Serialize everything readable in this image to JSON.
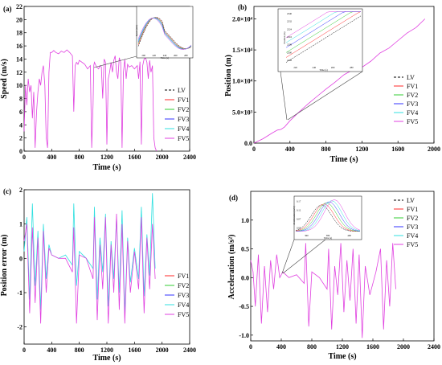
{
  "chart_data": [
    {
      "panel": "(a)",
      "type": "line",
      "xlabel": "Time (s)",
      "ylabel": "Speed (m/s)",
      "xlim": [
        0,
        2400
      ],
      "ylim": [
        0,
        22
      ],
      "xticks": [
        0,
        400,
        800,
        1200,
        1600,
        2000,
        2400
      ],
      "yticks": [
        0,
        2,
        4,
        6,
        8,
        10,
        12,
        14,
        16,
        18,
        20,
        22
      ],
      "legend": [
        "LV",
        "FV1",
        "FV2",
        "FV3",
        "FV4",
        "FV5"
      ],
      "legend_position": "bottom-right",
      "series": [
        {
          "name": "FV5",
          "color": "#e040e0",
          "x": [
            0,
            20,
            40,
            60,
            80,
            100,
            120,
            140,
            160,
            180,
            200,
            220,
            240,
            260,
            280,
            300,
            320,
            340,
            360,
            380,
            400,
            430,
            460,
            500,
            540,
            580,
            620,
            660,
            700,
            720,
            740,
            760,
            780,
            800,
            840,
            880,
            920,
            960,
            980,
            1000,
            1010,
            1020,
            1050,
            1080,
            1100,
            1120,
            1140,
            1160,
            1180,
            1200,
            1220,
            1240,
            1260,
            1280,
            1300,
            1320,
            1340,
            1360,
            1380,
            1400,
            1420,
            1440,
            1460,
            1480,
            1500,
            1520,
            1560,
            1600,
            1640,
            1660,
            1680,
            1700,
            1720,
            1740,
            1760,
            1780,
            1800,
            1820,
            1840,
            1860,
            1880,
            1900,
            1920
          ],
          "y": [
            3,
            10,
            7,
            11,
            9,
            10,
            5,
            9,
            0.5,
            6,
            9,
            11,
            10,
            12,
            13,
            10,
            2,
            0.5,
            12,
            15,
            15,
            15.3,
            15,
            14.8,
            15.2,
            15,
            15.4,
            15,
            14.5,
            6,
            13,
            13.5,
            13.2,
            13.8,
            13.5,
            13.2,
            12.5,
            13,
            0.5,
            7,
            13,
            13.5,
            12.8,
            12.5,
            13,
            12.8,
            8,
            14,
            13.5,
            1,
            11,
            12,
            13.5,
            12,
            13.8,
            14.5,
            12,
            11,
            14.2,
            13.5,
            0.5,
            12,
            14,
            11,
            13.2,
            12.8,
            13,
            12.5,
            13,
            11,
            13.6,
            1,
            13,
            14,
            14.2,
            13.5,
            11,
            13.8,
            12,
            13,
            2,
            0.5,
            0
          ]
        }
      ],
      "inset": {
        "xticks": [
          "200",
          "220",
          "240",
          "260",
          "280"
        ],
        "xlabel": "Time (s)",
        "ylabel": "Speed (m/s)"
      }
    },
    {
      "panel": "(b)",
      "type": "line",
      "xlabel": "Time (s)",
      "ylabel": "Position (m)",
      "xlim": [
        0,
        2000
      ],
      "ylim": [
        0,
        22000
      ],
      "xticks": [
        0,
        400,
        800,
        1200,
        1600,
        2000
      ],
      "ytick_labels": [
        "0.0",
        "5.0×10³",
        "1.0×10⁴",
        "1.5×10⁴",
        "2.0×10⁴"
      ],
      "legend": [
        "LV",
        "FV1",
        "FV2",
        "FV3",
        "FV4",
        "FV5"
      ],
      "legend_position": "bottom-right",
      "series": [
        {
          "name": "FV5",
          "color": "#e040e0",
          "x": [
            0,
            100,
            200,
            260,
            300,
            340,
            400,
            500,
            600,
            700,
            800,
            900,
            1000,
            1100,
            1200,
            1300,
            1400,
            1500,
            1600,
            1700,
            1800,
            1900
          ],
          "y": [
            0,
            700,
            1600,
            2100,
            2200,
            2600,
            3600,
            5000,
            6300,
            7500,
            8700,
            9800,
            11000,
            11800,
            12200,
            13200,
            14500,
            15300,
            16500,
            17700,
            18600,
            20000
          ]
        }
      ],
      "inset": {
        "xticks": [
          "220",
          "240",
          "260",
          "280"
        ],
        "xlabel": "Time (s)",
        "ylabel": "Position (m)",
        "yticks": [
          "2240",
          "2232",
          "2224",
          "2216",
          "2208",
          "2200",
          "2192"
        ]
      }
    },
    {
      "panel": "(c)",
      "type": "line",
      "xlabel": "Time (s)",
      "ylabel": "Position error (m)",
      "xlim": [
        0,
        2400
      ],
      "ylim": [
        -2.5,
        2
      ],
      "xticks": [
        0,
        400,
        800,
        1200,
        1600,
        2000,
        2400
      ],
      "yticks": [
        -2,
        -1,
        0,
        1,
        2
      ],
      "legend": [
        "FV1",
        "FV2",
        "FV3",
        "FV4",
        "FV5"
      ],
      "legend_position": "bottom-right",
      "series": [
        {
          "name": "FV4",
          "color": "#30e0e0",
          "x": [
            0,
            40,
            80,
            120,
            160,
            200,
            240,
            280,
            320,
            360,
            400,
            500,
            600,
            700,
            720,
            760,
            800,
            900,
            1000,
            1020,
            1060,
            1100,
            1140,
            1180,
            1220,
            1260,
            1300,
            1340,
            1380,
            1420,
            1460,
            1500,
            1540,
            1600,
            1660,
            1700,
            1740,
            1780,
            1820,
            1860,
            1900
          ],
          "y": [
            0.2,
            1.2,
            -1.2,
            1.6,
            -0.8,
            0.8,
            -1.5,
            1,
            -0.6,
            0.4,
            0.1,
            0,
            0.1,
            -0.2,
            1.6,
            -0.8,
            0.2,
            0,
            -0.3,
            1.5,
            -1.2,
            0.6,
            -0.4,
            1.3,
            -1.4,
            0.5,
            -0.6,
            1.2,
            -1,
            1.4,
            -1.6,
            0.6,
            -0.7,
            0.3,
            -0.6,
            1.5,
            -1.1,
            0.7,
            -0.5,
            1.9,
            -0.3
          ]
        },
        {
          "name": "FV5",
          "color": "#e040e0",
          "x": [
            0,
            40,
            80,
            120,
            160,
            200,
            240,
            280,
            320,
            360,
            400,
            500,
            600,
            700,
            720,
            760,
            800,
            900,
            1000,
            1020,
            1060,
            1100,
            1140,
            1180,
            1220,
            1260,
            1300,
            1340,
            1380,
            1420,
            1460,
            1500,
            1540,
            1600,
            1660,
            1700,
            1740,
            1780,
            1820,
            1860,
            1900
          ],
          "y": [
            0.5,
            1,
            -1.6,
            0.9,
            -1.3,
            0.6,
            -1.9,
            0.8,
            -1,
            0.3,
            0.1,
            0,
            0,
            -0.4,
            0.9,
            -1.9,
            0.1,
            0,
            -0.6,
            1.2,
            -1.8,
            0.4,
            -0.9,
            1.2,
            -1.9,
            0.4,
            -1,
            1.3,
            -1.5,
            1,
            -1.9,
            0.5,
            -1,
            0.2,
            -0.9,
            1.2,
            -1.6,
            0.6,
            -0.9,
            1,
            -0.6
          ]
        }
      ]
    },
    {
      "panel": "(d)",
      "type": "line",
      "xlabel": "Time (s)",
      "ylabel": "Acceleration (m/s²)",
      "xlim": [
        0,
        2400
      ],
      "ylim": [
        -1.1,
        1.5
      ],
      "xticks": [
        0,
        400,
        800,
        1200,
        1600,
        2000,
        2400
      ],
      "yticks": [
        -1.0,
        -0.5,
        0.0,
        0.5,
        1.0
      ],
      "legend": [
        "LV",
        "FV1",
        "FV2",
        "FV3",
        "FV4",
        "FV5"
      ],
      "legend_position": "top-right",
      "series": [
        {
          "name": "FV5",
          "color": "#e040e0",
          "x": [
            0,
            30,
            60,
            100,
            140,
            180,
            220,
            260,
            300,
            340,
            380,
            420,
            500,
            600,
            700,
            720,
            760,
            800,
            900,
            1000,
            1020,
            1060,
            1100,
            1140,
            1180,
            1220,
            1260,
            1300,
            1340,
            1380,
            1420,
            1460,
            1500,
            1560,
            1640,
            1700,
            1740,
            1780,
            1820,
            1860,
            1900
          ],
          "y": [
            0.3,
            0.1,
            -0.5,
            0.4,
            -0.8,
            0.2,
            -0.6,
            0.3,
            -0.2,
            0.4,
            0,
            0.1,
            0,
            0.05,
            -0.1,
            0.6,
            -0.85,
            0.1,
            0,
            -0.2,
            0.5,
            -0.9,
            0.2,
            -0.3,
            0.6,
            -0.6,
            0.3,
            -0.4,
            0.5,
            -0.8,
            0.4,
            -1.05,
            0.2,
            -0.3,
            0.1,
            0.5,
            -0.9,
            0.3,
            -0.5,
            0.6,
            -0.2
          ]
        }
      ],
      "inset": {
        "xticks": [
          "360",
          "380",
          "400"
        ],
        "xlabel": "Time (s)",
        "ylabel": "Acceleration (m/s²)",
        "yticks": [
          "0.17",
          "0.12",
          "0.07",
          "0.02"
        ]
      }
    }
  ]
}
